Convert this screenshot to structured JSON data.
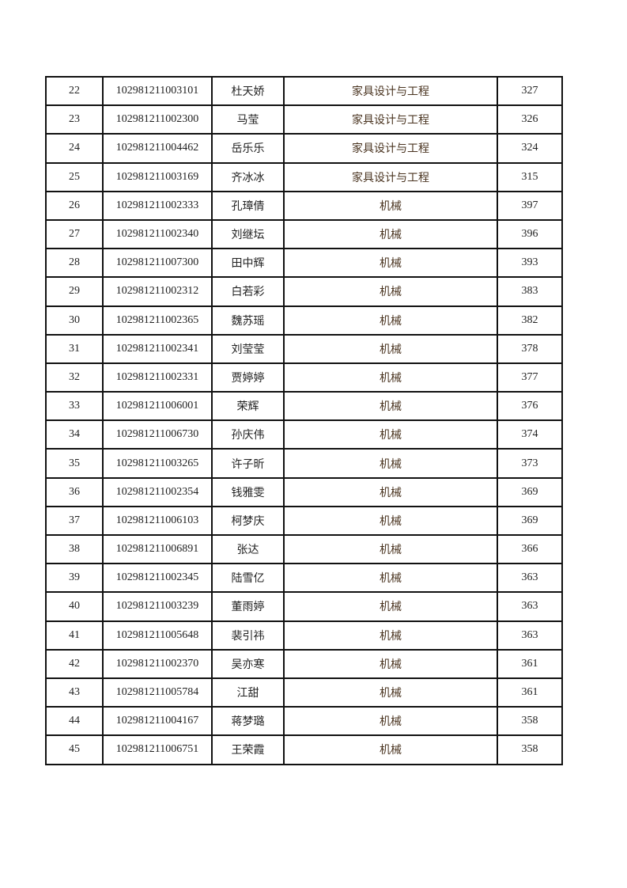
{
  "table": {
    "rows": [
      {
        "no": "22",
        "id": "102981211003101",
        "name": "杜天娇",
        "major": "家具设计与工程",
        "score": "327"
      },
      {
        "no": "23",
        "id": "102981211002300",
        "name": "马莹",
        "major": "家具设计与工程",
        "score": "326"
      },
      {
        "no": "24",
        "id": "102981211004462",
        "name": "岳乐乐",
        "major": "家具设计与工程",
        "score": "324"
      },
      {
        "no": "25",
        "id": "102981211003169",
        "name": "齐冰冰",
        "major": "家具设计与工程",
        "score": "315"
      },
      {
        "no": "26",
        "id": "102981211002333",
        "name": "孔璋倩",
        "major": "机械",
        "score": "397"
      },
      {
        "no": "27",
        "id": "102981211002340",
        "name": "刘继坛",
        "major": "机械",
        "score": "396"
      },
      {
        "no": "28",
        "id": "102981211007300",
        "name": "田中辉",
        "major": "机械",
        "score": "393"
      },
      {
        "no": "29",
        "id": "102981211002312",
        "name": "白若彩",
        "major": "机械",
        "score": "383"
      },
      {
        "no": "30",
        "id": "102981211002365",
        "name": "魏苏瑶",
        "major": "机械",
        "score": "382"
      },
      {
        "no": "31",
        "id": "102981211002341",
        "name": "刘莹莹",
        "major": "机械",
        "score": "378"
      },
      {
        "no": "32",
        "id": "102981211002331",
        "name": "贾婷婷",
        "major": "机械",
        "score": "377"
      },
      {
        "no": "33",
        "id": "102981211006001",
        "name": "荣辉",
        "major": "机械",
        "score": "376"
      },
      {
        "no": "34",
        "id": "102981211006730",
        "name": "孙庆伟",
        "major": "机械",
        "score": "374"
      },
      {
        "no": "35",
        "id": "102981211003265",
        "name": "许子昕",
        "major": "机械",
        "score": "373"
      },
      {
        "no": "36",
        "id": "102981211002354",
        "name": "钱雅雯",
        "major": "机械",
        "score": "369"
      },
      {
        "no": "37",
        "id": "102981211006103",
        "name": "柯梦庆",
        "major": "机械",
        "score": "369"
      },
      {
        "no": "38",
        "id": "102981211006891",
        "name": "张达",
        "major": "机械",
        "score": "366"
      },
      {
        "no": "39",
        "id": "102981211002345",
        "name": "陆雪亿",
        "major": "机械",
        "score": "363"
      },
      {
        "no": "40",
        "id": "102981211003239",
        "name": "董雨婷",
        "major": "机械",
        "score": "363"
      },
      {
        "no": "41",
        "id": "102981211005648",
        "name": "裴引祎",
        "major": "机械",
        "score": "363"
      },
      {
        "no": "42",
        "id": "102981211002370",
        "name": "吴亦寒",
        "major": "机械",
        "score": "361"
      },
      {
        "no": "43",
        "id": "102981211005784",
        "name": "江甜",
        "major": "机械",
        "score": "361"
      },
      {
        "no": "44",
        "id": "102981211004167",
        "name": "蒋梦璐",
        "major": "机械",
        "score": "358"
      },
      {
        "no": "45",
        "id": "102981211006751",
        "name": "王荣霞",
        "major": "机械",
        "score": "358"
      }
    ]
  }
}
